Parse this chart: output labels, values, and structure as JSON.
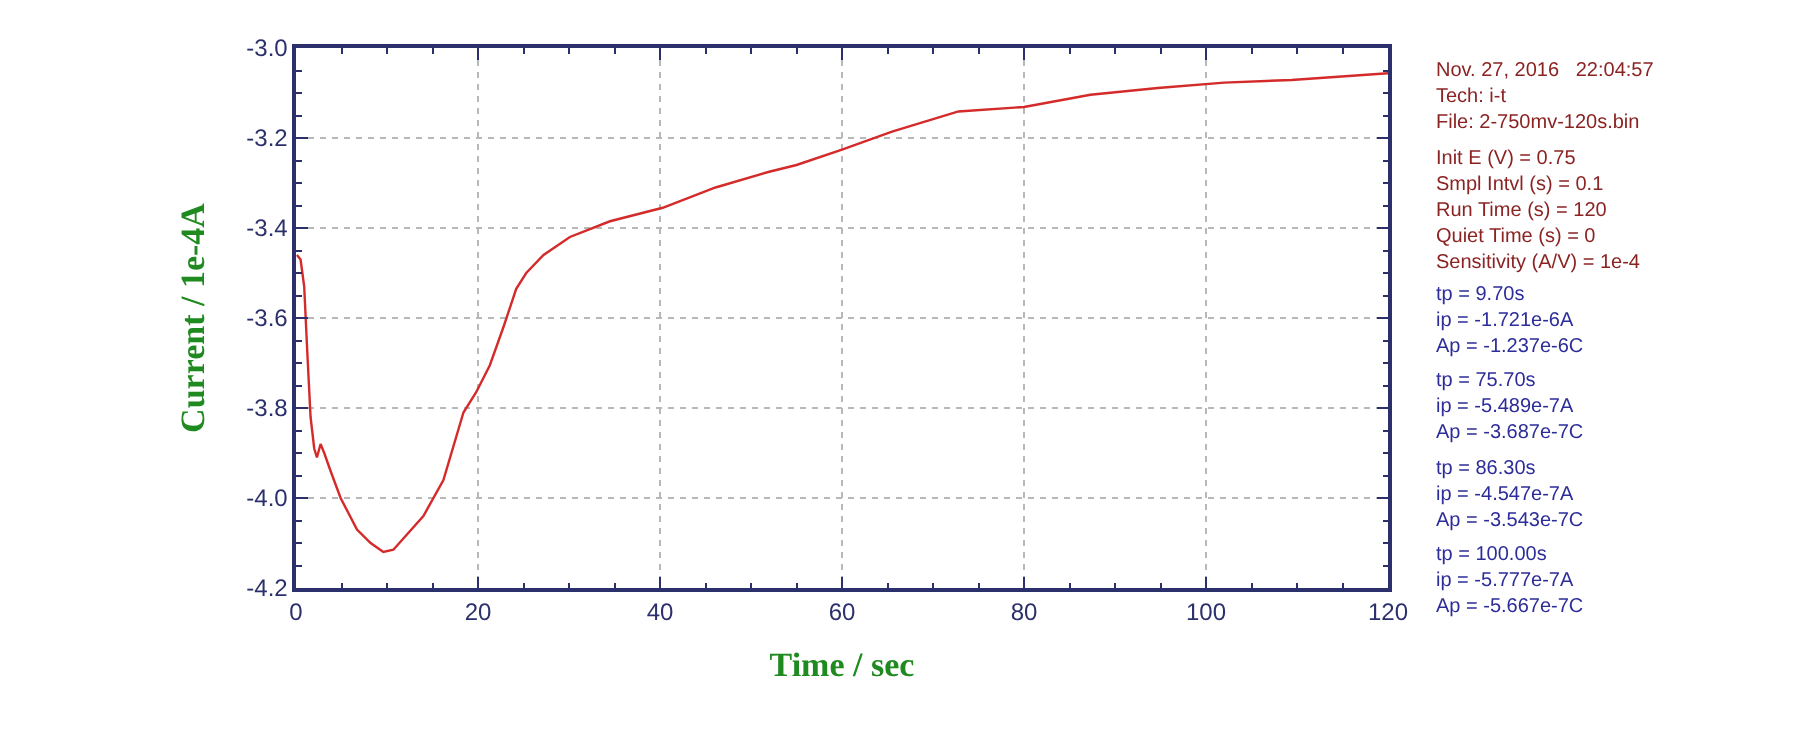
{
  "chart_data": {
    "type": "line",
    "xlabel": "Time / sec",
    "ylabel": "Current / 1e-4A",
    "xlim": [
      0,
      120
    ],
    "xticks": [
      0,
      20,
      40,
      60,
      80,
      100,
      120
    ],
    "ylim": [
      -4.2,
      -3.0
    ],
    "yticks": [
      -4.2,
      {
        "value": -4,
        "label": "-4.0"
      },
      -3.8,
      -3.6,
      -3.4,
      -3.2,
      {
        "value": -3,
        "label": "-3.0"
      }
    ],
    "grid": true,
    "marker": "none",
    "line_style": "solid",
    "series": [
      {
        "color": "#d42a2a",
        "x": [
          0.1,
          0.5,
          0.9,
          1.25,
          1.6,
          2.0,
          2.3,
          2.7,
          3.1,
          3.8,
          4.9,
          6.7,
          8.2,
          9.6,
          10.7,
          11.8,
          14.0,
          16.2,
          18.4,
          19.8,
          21.3,
          22.8,
          24.2,
          25.3,
          27.2,
          30.1,
          34.5,
          40.3,
          46.1,
          52,
          55,
          60,
          65.5,
          72.8,
          80,
          87.3,
          94.7,
          102,
          109.4,
          120
        ],
        "values": [
          -3.46,
          -3.47,
          -3.53,
          -3.68,
          -3.82,
          -3.89,
          -3.91,
          -3.88,
          -3.9,
          -3.94,
          -4.0,
          -4.07,
          -4.1,
          -4.12,
          -4.115,
          -4.09,
          -4.04,
          -3.96,
          -3.81,
          -3.765,
          -3.705,
          -3.62,
          -3.535,
          -3.5,
          -3.46,
          -3.42,
          -3.385,
          -3.355,
          -3.31,
          -3.275,
          -3.26,
          -3.226,
          -3.186,
          -3.141,
          -3.131,
          -3.104,
          -3.089,
          -3.077,
          -3.071,
          -3.056
        ]
      }
    ],
    "annotations": [
      "Nov. 27, 2016   22:04:57\nTech: i-t\nFile: 2-750mv-120s.bin",
      "Init E (V) = 0.75\nSmpl Intvl (s) = 0.1\nRun Time (s) = 120\nQuiet Time (s) = 0\nSensitivity (A/V) = 1e-4",
      "tp = 9.70s\nip = -1.721e-6A\nAp = -1.237e-6C",
      "tp = 75.70s\nip = -5.489e-7A\nAp = -3.687e-7C",
      "tp = 86.30s\nip = -4.547e-7A\nAp = -3.543e-7C",
      "tp = 100.00s\nip = -5.777e-7A\nAp = -5.667e-7C"
    ]
  }
}
